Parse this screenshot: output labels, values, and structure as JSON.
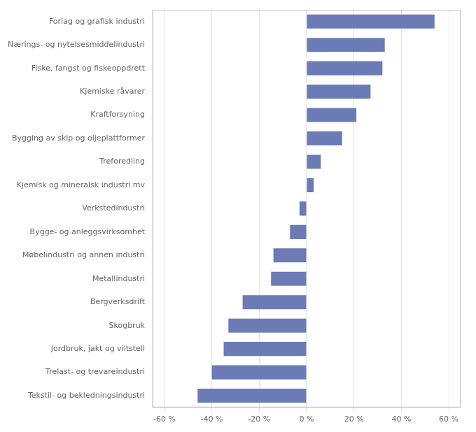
{
  "chart_data": {
    "type": "bar",
    "orientation": "horizontal",
    "categories": [
      "Tekstil- og bekledningsindustri",
      "Trelast- og trevareindustri",
      "Jordbruk, jakt og viltstell",
      "Skogbruk",
      "Bergverksdrift",
      "Metallindustri",
      "Møbelindustri og annen industri",
      "Bygge- og anleggsvirksomhet",
      "Verkstedindustri",
      "Kjemisk og mineralsk industri mv",
      "Treforedling",
      "Bygging av skip og oljeplattformer",
      "Kraftforsyning",
      "Kjemiske råvarer",
      "Fiske, fangst og fiskeoppdrett",
      "Nærings- og nytelsesmiddelindustri",
      "Forlag og grafisk industri"
    ],
    "values": [
      -46,
      -40,
      -35,
      -33,
      -27,
      -15,
      -14,
      -7,
      -3,
      3,
      6,
      15,
      21,
      27,
      32,
      33,
      54
    ],
    "color": "#6b7bb5",
    "xlim": [
      -65,
      65
    ],
    "xticks": [
      {
        "value": -60,
        "label": "-60 %"
      },
      {
        "value": -40,
        "label": "-40 %"
      },
      {
        "value": -20,
        "label": "-20 %"
      },
      {
        "value": 0,
        "label": "0 %"
      },
      {
        "value": 20,
        "label": "20 %"
      },
      {
        "value": 40,
        "label": "40 %"
      },
      {
        "value": 60,
        "label": "60 %"
      }
    ],
    "grid": true
  }
}
